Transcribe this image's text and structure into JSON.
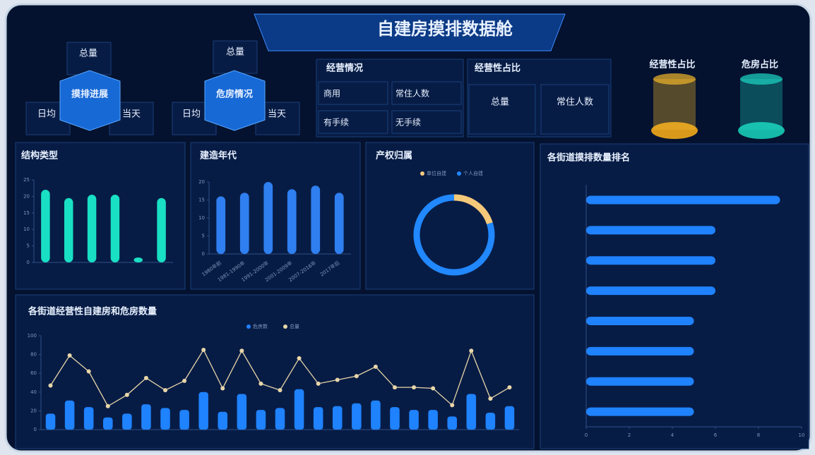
{
  "header": {
    "title": "自建房摸排数据舱"
  },
  "tiles": [
    {
      "center": "摸排进展",
      "top": "总量",
      "left": "日均",
      "right": "当天"
    },
    {
      "center": "危房情况",
      "top": "总量",
      "left": "日均",
      "right": "当天"
    }
  ],
  "business": {
    "title": "经营情况",
    "items": [
      "商用",
      "常住人数",
      "有手续",
      "无手续"
    ]
  },
  "business_ratio": {
    "title": "经营性占比",
    "items": [
      "总量",
      "常住人数"
    ]
  },
  "cylinders": [
    "经营性占比",
    "危房占比"
  ],
  "chart_data": [
    {
      "type": "bar",
      "title": "结构类型",
      "categories": [
        null,
        null,
        null,
        null,
        null,
        null
      ],
      "values": [
        22,
        19.5,
        20.5,
        20.5,
        1.5,
        19.5
      ],
      "color": "#19e0c4",
      "ylim": [
        0,
        25
      ],
      "yticks": [
        0,
        5,
        10,
        15,
        20,
        25
      ],
      "grid": false
    },
    {
      "type": "bar",
      "title": "建造年代",
      "categories": [
        "1980年前",
        "1981-1990年",
        "1991-2000年",
        "2001-2009年",
        "2007-2016年",
        "2017年后"
      ],
      "values": [
        16,
        17,
        20,
        18,
        19,
        17
      ],
      "color": "#2f7ff0",
      "ylim": [
        0,
        20
      ],
      "yticks": [
        0,
        5,
        10,
        15,
        20
      ],
      "grid": false
    },
    {
      "type": "pie",
      "title": "产权归属",
      "categories": [
        "单位自建",
        "个人自建"
      ],
      "values": [
        20,
        80
      ],
      "colors": [
        "#f5c97a",
        "#2188ff"
      ]
    },
    {
      "type": "hbar",
      "title": "各街道摸排数量排名",
      "categories": [
        null,
        null,
        null,
        null,
        null,
        null,
        null,
        null
      ],
      "values": [
        9,
        6,
        6,
        6,
        5,
        5,
        5,
        5
      ],
      "color": "#1f82ff",
      "xlim": [
        0,
        10
      ],
      "xticks": [
        0,
        2,
        4,
        6,
        8,
        10
      ],
      "grid": false
    },
    {
      "type": "combo",
      "title": "各街道经营性自建房和危房数量",
      "categories": [
        null,
        null,
        null,
        null,
        null,
        null,
        null,
        null,
        null,
        null,
        null,
        null,
        null,
        null,
        null,
        null,
        null,
        null,
        null,
        null,
        null,
        null,
        null,
        null,
        null
      ],
      "series": [
        {
          "name": "危房数",
          "mark": "bar",
          "color": "#1f82ff",
          "values": [
            17,
            31,
            24,
            13,
            17,
            27,
            23,
            21,
            40,
            19,
            38,
            21,
            23,
            43,
            24,
            25,
            28,
            31,
            24,
            21,
            21,
            14,
            38,
            18,
            25
          ]
        },
        {
          "name": "总量",
          "mark": "line",
          "color": "#e8d6a8",
          "values": [
            47,
            79,
            62,
            25,
            37,
            55,
            42,
            52,
            85,
            44,
            84,
            49,
            42,
            76,
            49,
            53,
            57,
            67,
            45,
            45,
            44,
            26,
            84,
            33,
            45
          ]
        }
      ],
      "ylim": [
        0,
        100
      ],
      "yticks": [
        0,
        20,
        40,
        60,
        80,
        100
      ],
      "grid": false
    }
  ]
}
